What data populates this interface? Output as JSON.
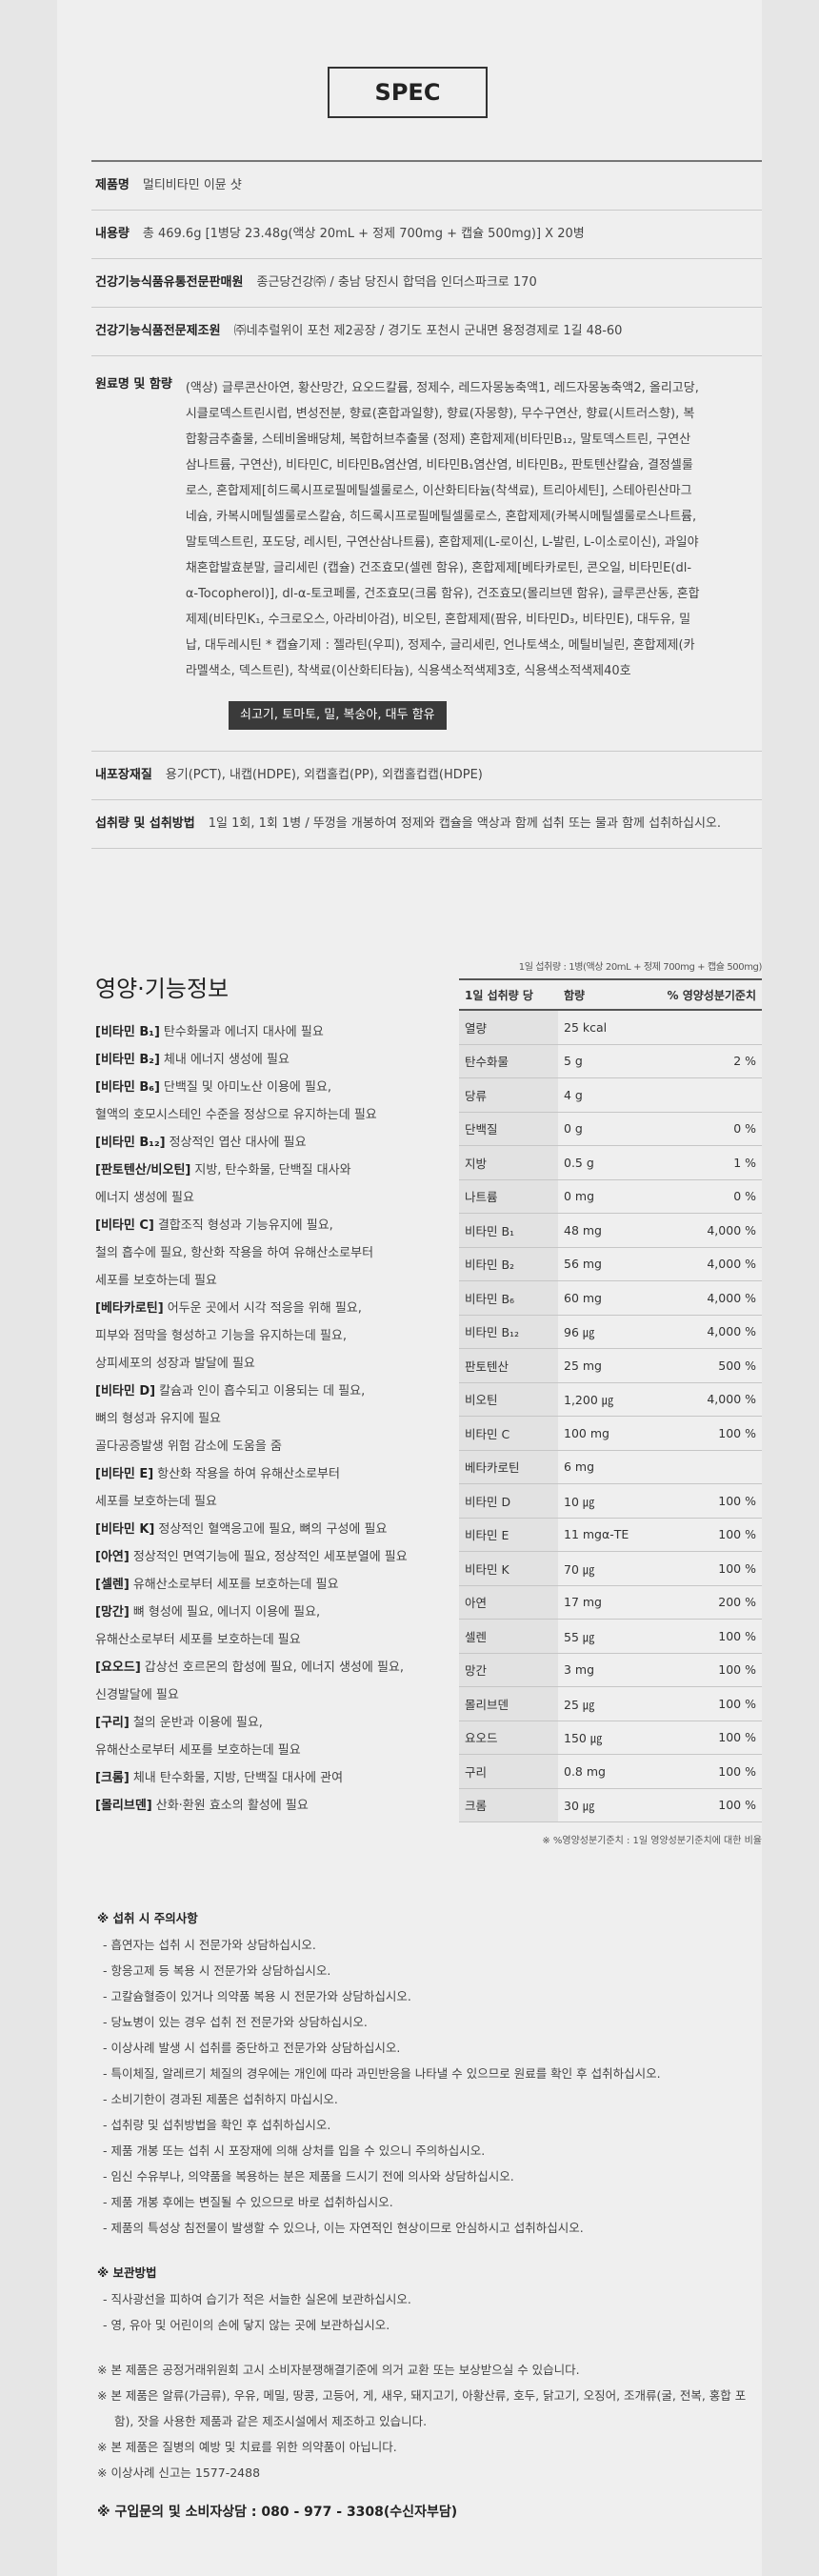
{
  "spec": {
    "title": "SPEC",
    "rows": [
      {
        "label": "제품명",
        "value": "멀티비타민 이뮨 샷"
      },
      {
        "label": "내용량",
        "value": "총 469.6g [1병당 23.48g(액상 20mL + 정제 700mg + 캡슐 500mg)] X 20병"
      },
      {
        "label": "건강기능식품유통전문판매원",
        "value": "종근당건강㈜ / 충남 당진시 합덕읍 인더스파크로 170"
      },
      {
        "label": "건강기능식품전문제조원",
        "value": "㈜네추럴위이 포천 제2공장 / 경기도 포천시 군내면 용정경제로 1길 48-60"
      }
    ],
    "ingredients": {
      "label": "원료명 및 함량",
      "value": "(액상) 글루콘산아연, 황산망간, 요오드칼륨, 정제수, 레드자몽농축액1, 레드자몽농축액2, 올리고당, 시클로덱스트린시럽, 변성전분, 향료(혼합과일향), 향료(자몽향), 무수구연산, 향료(시트러스향), 복합황금추출물, 스테비올배당체, 복합허브추출물 (정제) 혼합제제(비타민B₁₂, 말토덱스트린, 구연산삼나트륨, 구연산), 비타민C, 비타민B₆염산염, 비타민B₁염산염, 비타민B₂, 판토텐산칼슘, 결정셀룰로스, 혼합제제[히드록시프로필메틸셀룰로스, 이산화티타늄(착색료), 트리아세틴], 스테아린산마그네슘, 카복시메틸셀룰로스칼슘, 히드록시프로필메틸셀룰로스, 혼합제제(카복시메틸셀룰로스나트륨, 말토덱스트린, 포도당, 레시틴, 구연산삼나트륨), 혼합제제(L-로이신, L-발린, L-이소로이신), 과일야채혼합발효분말, 글리세린 (캡슐) 건조효모(셀렌 함유), 혼합제제[베타카로틴, 콘오일, 비타민E(dl-α-Tocopherol)], dl-α-토코페롤, 건조효모(크롬 함유), 건조효모(몰리브덴 함유), 글루콘산동, 혼합제제(비타민K₁, 수크로오스, 아라비아검), 비오틴, 혼합제제(팜유, 비타민D₃, 비타민E), 대두유, 밀납, 대두레시틴 * 캡슐기제 : 젤라틴(우피), 정제수, 글리세린, 언나토색소, 메틸비닐린, 혼합제제(카라멜색소, 덱스트린), 착색료(이산화티타늄), 식용색소적색제3호, 식용색소적색제40호",
      "allergen": "쇠고기, 토마토, 밀, 복숭아, 대두 함유"
    },
    "rows2": [
      {
        "label": "내포장재질",
        "value": "용기(PCT), 내캡(HDPE), 외캡홀컵(PP), 외캡홀컵캡(HDPE)"
      },
      {
        "label": "섭취량 및 섭취방법",
        "value": "1일 1회, 1회 1병 / 뚜껑을 개봉하여 정제와 캡슐을 액상과 함께 섭취 또는 물과 함께 섭취하십시오."
      }
    ]
  },
  "function_info": {
    "title": "영양·기능정보",
    "items": [
      {
        "label": "[비타민 B₁]",
        "lines": [
          "탄수화물과 에너지 대사에 필요"
        ]
      },
      {
        "label": "[비타민 B₂]",
        "lines": [
          "체내 에너지 생성에 필요"
        ]
      },
      {
        "label": "[비타민 B₆]",
        "lines": [
          "단백질 및 아미노산 이용에 필요,",
          "혈액의 호모시스테인 수준을 정상으로 유지하는데 필요"
        ]
      },
      {
        "label": "[비타민 B₁₂]",
        "lines": [
          "정상적인 엽산 대사에 필요"
        ]
      },
      {
        "label": "[판토텐산/비오틴]",
        "lines": [
          "지방, 탄수화물, 단백질 대사와",
          "에너지 생성에 필요"
        ]
      },
      {
        "label": "[비타민 C]",
        "lines": [
          "결합조직 형성과 기능유지에 필요,",
          "철의 흡수에 필요, 항산화 작용을 하여 유해산소로부터",
          "세포를 보호하는데 필요"
        ]
      },
      {
        "label": "[베타카로틴]",
        "lines": [
          "어두운 곳에서 시각 적응을 위해 필요,",
          "피부와 점막을 형성하고 기능을 유지하는데 필요,",
          "상피세포의 성장과 발달에 필요"
        ]
      },
      {
        "label": "[비타민 D]",
        "lines": [
          "칼슘과 인이 흡수되고 이용되는 데 필요,",
          "뼈의 형성과 유지에 필요",
          "골다공증발생 위험 감소에 도움을 줌"
        ]
      },
      {
        "label": "[비타민 E]",
        "lines": [
          "항산화 작용을 하여 유해산소로부터",
          "세포를 보호하는데 필요"
        ]
      },
      {
        "label": "[비타민 K]",
        "lines": [
          "정상적인 혈액응고에 필요, 뼈의 구성에 필요"
        ]
      },
      {
        "label": "[아연]",
        "lines": [
          "정상적인 면역기능에 필요, 정상적인 세포분열에 필요"
        ]
      },
      {
        "label": "[셀렌]",
        "lines": [
          "유해산소로부터 세포를 보호하는데 필요"
        ]
      },
      {
        "label": "[망간]",
        "lines": [
          "뼈 형성에 필요, 에너지 이용에 필요,",
          "유해산소로부터 세포를 보호하는데 필요"
        ]
      },
      {
        "label": "[요오드]",
        "lines": [
          "갑상선 호르몬의 합성에 필요, 에너지 생성에 필요,",
          "신경발달에 필요"
        ]
      },
      {
        "label": "[구리]",
        "lines": [
          "철의 운반과 이용에 필요,",
          "유해산소로부터 세포를 보호하는데 필요"
        ]
      },
      {
        "label": "[크롬]",
        "lines": [
          "체내 탄수화물, 지방, 단백질 대사에 관여"
        ]
      },
      {
        "label": "[몰리브덴]",
        "lines": [
          "산화·환원 효소의 활성에 필요"
        ]
      }
    ]
  },
  "nutrition_table": {
    "note": "1일 섭취량 : 1병(액상 20mL + 정제 700mg + 캡슐 500mg)",
    "header": [
      "1일 섭취량 당",
      "함량",
      "% 영양성분기준치"
    ],
    "rows": [
      [
        "열량",
        "25 kcal",
        null
      ],
      [
        "탄수화물",
        "5 g",
        "2 %"
      ],
      [
        "당류",
        "4 g",
        null
      ],
      [
        "단백질",
        "0 g",
        "0 %"
      ],
      [
        "지방",
        "0.5 g",
        "1 %"
      ],
      [
        "나트륨",
        "0 mg",
        "0 %"
      ],
      [
        "비타민 B₁",
        "48 mg",
        "4,000 %"
      ],
      [
        "비타민 B₂",
        "56 mg",
        "4,000 %"
      ],
      [
        "비타민 B₆",
        "60 mg",
        "4,000 %"
      ],
      [
        "비타민 B₁₂",
        "96 ㎍",
        "4,000 %"
      ],
      [
        "판토텐산",
        "25 mg",
        "500 %"
      ],
      [
        "비오틴",
        "1,200 ㎍",
        "4,000 %"
      ],
      [
        "비타민 C",
        "100 mg",
        "100 %"
      ],
      [
        "베타카로틴",
        "6 mg",
        null
      ],
      [
        "비타민 D",
        "10 ㎍",
        "100 %"
      ],
      [
        "비타민 E",
        "11 mgα-TE",
        "100 %"
      ],
      [
        "비타민 K",
        "70 ㎍",
        "100 %"
      ],
      [
        "아연",
        "17 mg",
        "200 %"
      ],
      [
        "셀렌",
        "55 ㎍",
        "100 %"
      ],
      [
        "망간",
        "3 mg",
        "100 %"
      ],
      [
        "몰리브덴",
        "25 ㎍",
        "100 %"
      ],
      [
        "요오드",
        "150 ㎍",
        "100 %"
      ],
      [
        "구리",
        "0.8 mg",
        "100 %"
      ],
      [
        "크롬",
        "30 ㎍",
        "100 %"
      ]
    ],
    "footnote": "※ %영양성분기준치 : 1일 영양성분기준치에 대한 비율"
  },
  "cautions": {
    "title": "※ 섭취 시 주의사항",
    "items": [
      "- 흡연자는 섭취 시 전문가와 상담하십시오.",
      "- 항응고제 등 복용 시 전문가와 상담하십시오.",
      "- 고칼슘혈증이 있거나 의약품 복용 시 전문가와 상담하십시오.",
      "- 당뇨병이 있는 경우 섭취 전 전문가와 상담하십시오.",
      "- 이상사례 발생 시 섭취를 중단하고 전문가와 상담하십시오.",
      "- 특이체질, 알레르기 체질의 경우에는 개인에 따라 과민반응을 나타낼 수 있으므로 원료를 확인 후 섭취하십시오.",
      "- 소비기한이 경과된 제품은 섭취하지 마십시오.",
      "- 섭취량 및 섭취방법을 확인 후 섭취하십시오.",
      "- 제품 개봉 또는 섭취 시 포장재에 의해 상처를 입을 수 있으니 주의하십시오.",
      "- 임신 수유부나, 의약품을 복용하는 분은 제품을 드시기 전에 의사와 상담하십시오.",
      "- 제품 개봉 후에는 변질될 수 있으므로 바로 섭취하십시오.",
      "- 제품의 특성상 침전물이 발생할 수 있으나, 이는 자연적인 현상이므로 안심하시고 섭취하십시오."
    ]
  },
  "storage": {
    "title": "※ 보관방법",
    "items": [
      "- 직사광선을 피하여 습기가 적은 서늘한 실온에 보관하십시오.",
      "- 영, 유아 및 어린이의 손에 닿지 않는 곳에 보관하십시오."
    ]
  },
  "notes": [
    "※ 본 제품은 공정거래위원회 고시 소비자분쟁해결기준에 의거 교환 또는 보상받으실 수 있습니다.",
    "※ 본 제품은 알류(가금류), 우유, 메밀, 땅콩, 고등어, 게, 새우, 돼지고기, 아황산류, 호두, 닭고기, 오징어, 조개류(굴, 전복, 홍합 포함), 잣을 사용한 제품과 같은 제조시설에서 제조하고 있습니다.",
    "※ 본 제품은 질병의 예방 및 치료를 위한 의약품이 아닙니다.",
    "※ 이상사례 신고는 1577-2488"
  ],
  "footer": "※ 구입문의 및 소비자상담 : 080 - 977 - 3308(수신자부담)"
}
